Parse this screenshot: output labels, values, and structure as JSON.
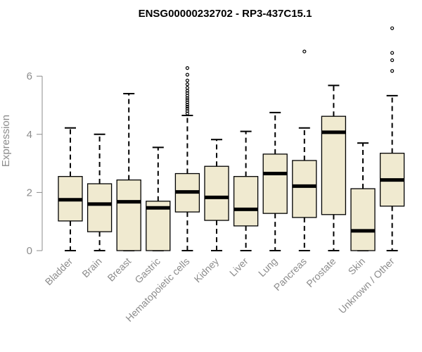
{
  "chart_data": {
    "type": "boxplot",
    "title": "ENSG00000232702 - RP3-437C15.1",
    "ylabel": "Expression",
    "xlabel": "",
    "ylim": [
      0,
      7.8
    ],
    "yticks": [
      0,
      2,
      4,
      6
    ],
    "box_color": "#f0ead0",
    "categories": [
      "Bladder",
      "Brain",
      "Breast",
      "Gastric",
      "Hematopoietic cells",
      "Kidney",
      "Liver",
      "Lung",
      "Pancreas",
      "Prostate",
      "Skin",
      "Unknown / Other"
    ],
    "boxes": [
      {
        "min": 0,
        "q1": 1.02,
        "median": 1.75,
        "q3": 2.55,
        "max": 4.22,
        "outliers": []
      },
      {
        "min": 0,
        "q1": 0.65,
        "median": 1.6,
        "q3": 2.3,
        "max": 4.0,
        "outliers": []
      },
      {
        "min": 0,
        "q1": 0,
        "median": 1.68,
        "q3": 2.43,
        "max": 5.4,
        "outliers": []
      },
      {
        "min": 0,
        "q1": 0,
        "median": 1.47,
        "q3": 1.7,
        "max": 3.55,
        "outliers": []
      },
      {
        "min": 0,
        "q1": 1.33,
        "median": 2.02,
        "q3": 2.65,
        "max": 4.65,
        "outliers": [
          4.72,
          4.8,
          4.88,
          4.95,
          5.02,
          5.1,
          5.18,
          5.25,
          5.33,
          5.42,
          5.5,
          5.6,
          5.72,
          5.85,
          6.05,
          6.28
        ]
      },
      {
        "min": 0,
        "q1": 1.04,
        "median": 1.83,
        "q3": 2.9,
        "max": 3.82,
        "outliers": []
      },
      {
        "min": 0,
        "q1": 0.85,
        "median": 1.42,
        "q3": 2.55,
        "max": 4.1,
        "outliers": []
      },
      {
        "min": 0,
        "q1": 1.28,
        "median": 2.65,
        "q3": 3.32,
        "max": 4.75,
        "outliers": []
      },
      {
        "min": 0,
        "q1": 1.14,
        "median": 2.22,
        "q3": 3.1,
        "max": 4.22,
        "outliers": [
          6.85
        ]
      },
      {
        "min": 0,
        "q1": 1.24,
        "median": 4.07,
        "q3": 4.62,
        "max": 5.68,
        "outliers": []
      },
      {
        "min": 0,
        "q1": 0,
        "median": 0.68,
        "q3": 2.13,
        "max": 3.7,
        "outliers": []
      },
      {
        "min": 0,
        "q1": 1.53,
        "median": 2.43,
        "q3": 3.35,
        "max": 5.33,
        "outliers": [
          6.18,
          6.55,
          6.8,
          7.65
        ]
      }
    ]
  }
}
